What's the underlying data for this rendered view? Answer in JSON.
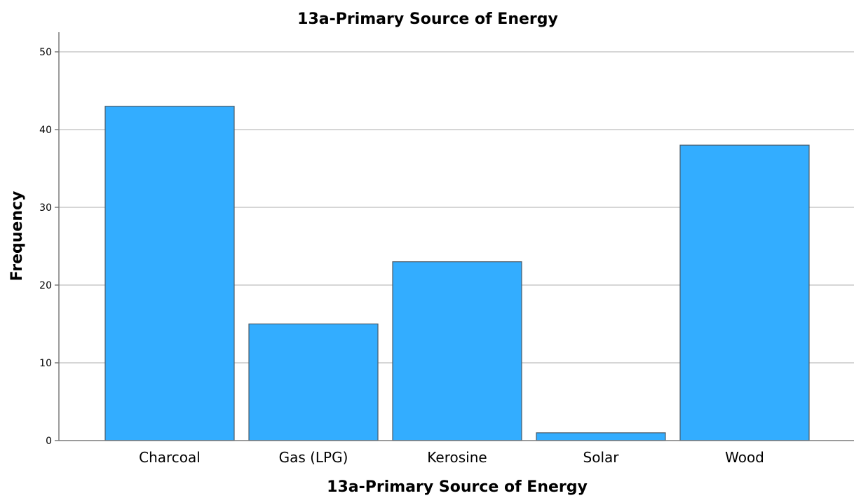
{
  "chart_data": {
    "type": "bar",
    "title": "13a-Primary Source of Energy",
    "xlabel": "13a-Primary Source of Energy",
    "ylabel": "Frequency",
    "categories": [
      "Charcoal",
      "Gas (LPG)",
      "Kerosine",
      "Solar",
      "Wood"
    ],
    "values": [
      43,
      15,
      23,
      1,
      38
    ],
    "ylim": [
      0,
      50
    ],
    "yticks": [
      0,
      10,
      20,
      30,
      40,
      50
    ],
    "grid": true,
    "colors": {
      "bar_fill": "#33adff",
      "bar_stroke": "#4a5a66",
      "gridline": "#c8c8c8",
      "axis": "#7a7a7a"
    }
  }
}
